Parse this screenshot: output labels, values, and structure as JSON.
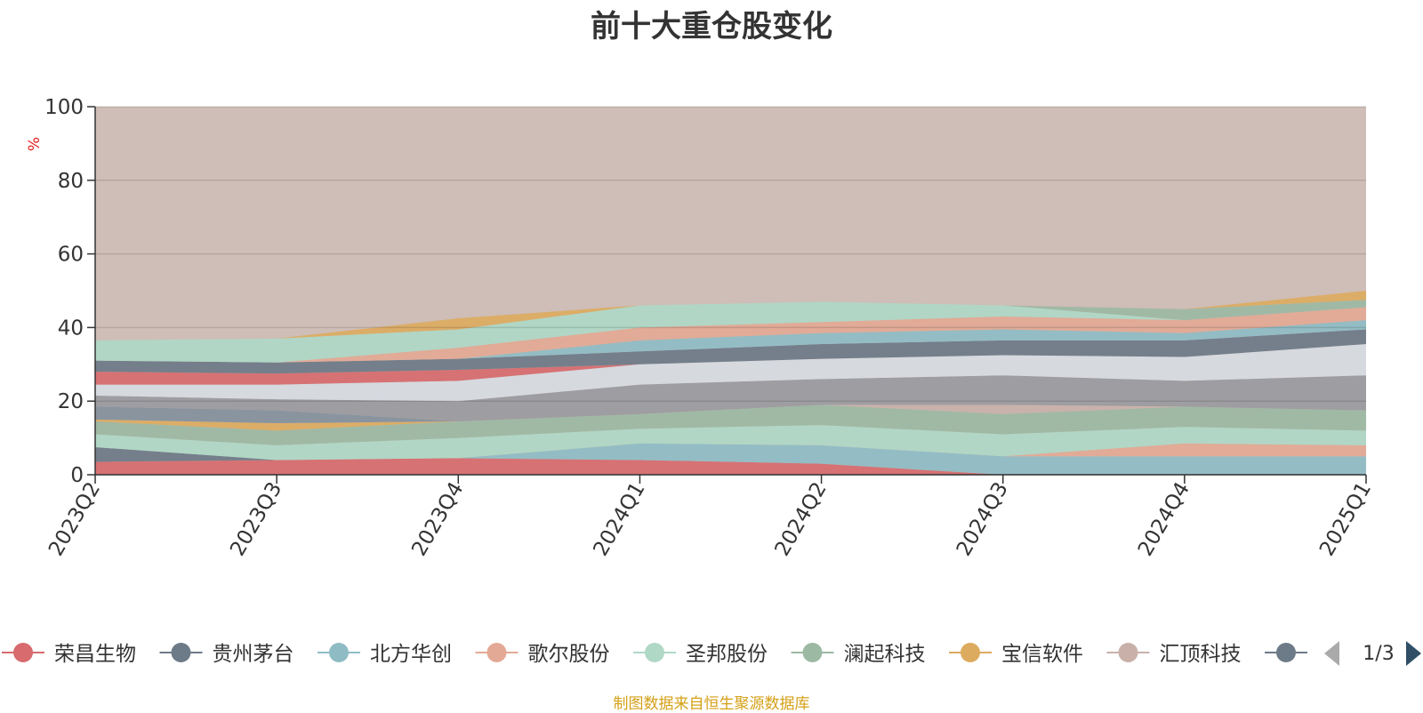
{
  "title": "前十大重仓股变化",
  "footer": "制图数据来自恒生聚源数据库",
  "legend_page": "1/3",
  "colors": {
    "title": "#333333",
    "footer": "#d4a017",
    "axis": "#333333",
    "unit": "#e02020",
    "plot_bg": "#cfbdb7",
    "pager_prev": "#aaaaaa",
    "pager_next": "#2f4f66"
  },
  "chart_data": {
    "type": "area",
    "stacked": true,
    "x": [
      "2023Q2",
      "2023Q3",
      "2023Q4",
      "2024Q1",
      "2024Q2",
      "2024Q3",
      "2024Q4",
      "2025Q1"
    ],
    "ylabel": "%",
    "ylim": [
      0,
      100
    ],
    "yticks": [
      0,
      20,
      40,
      60,
      80,
      100
    ],
    "grid": true,
    "legend_position": "bottom",
    "series": [
      {
        "name": "荣昌生物",
        "color": "#d76b6e",
        "values": [
          3.5,
          4,
          4.5,
          4,
          3,
          0,
          0,
          0
        ]
      },
      {
        "name": "贵州茅台",
        "color": "#6d7a87",
        "values": [
          4,
          0,
          0,
          0,
          0,
          0,
          0,
          0
        ]
      },
      {
        "name": "北方华创",
        "color": "#8fbcc4",
        "values": [
          0,
          0,
          0,
          4.5,
          5,
          5,
          5,
          5
        ]
      },
      {
        "name": "歌尔股份",
        "color": "#e3a994",
        "values": [
          0,
          0,
          0,
          0,
          0,
          0,
          3.5,
          3
        ]
      },
      {
        "name": "圣邦股份",
        "color": "#afd8c6",
        "values": [
          3.5,
          4,
          5.5,
          4,
          5.5,
          6,
          4.5,
          4
        ]
      },
      {
        "name": "澜起科技",
        "color": "#9cb9a3",
        "values": [
          3.5,
          4,
          4.5,
          4,
          5.5,
          5.5,
          5.5,
          5.5
        ]
      },
      {
        "name": "宝信软件",
        "color": "#dcab5f",
        "values": [
          0.5,
          2,
          0,
          0,
          0,
          0,
          0,
          0
        ]
      },
      {
        "name": "汇顶科技",
        "color": "#c9b1a9",
        "values": [
          0,
          0,
          0,
          0,
          0,
          2.5,
          0,
          0
        ]
      },
      {
        "name": "",
        "color": "#83909c",
        "values": [
          3.5,
          3.5,
          0,
          0,
          0,
          0,
          0,
          0
        ]
      },
      {
        "name": "",
        "color": "#9a9a9e",
        "values": [
          3,
          3,
          5.5,
          8,
          7,
          8,
          7,
          9.5
        ]
      },
      {
        "name": "",
        "color": "#d7dbe1",
        "values": [
          3,
          4,
          5.5,
          5.5,
          5.5,
          5.5,
          6.5,
          8.5
        ]
      },
      {
        "name": "",
        "color": "#d76b6e",
        "values": [
          3.5,
          3,
          3,
          0,
          0,
          0,
          0,
          0
        ]
      },
      {
        "name": "",
        "color": "#6d7a87",
        "values": [
          3,
          3,
          3,
          3.5,
          4,
          4,
          4.5,
          4
        ]
      },
      {
        "name": "",
        "color": "#8fbcc4",
        "values": [
          0,
          0,
          0,
          3,
          3,
          3,
          2,
          2.5
        ]
      },
      {
        "name": "",
        "color": "#e3a994",
        "values": [
          0,
          0,
          3,
          3.5,
          3,
          3.5,
          3.5,
          3.5
        ]
      },
      {
        "name": "",
        "color": "#afd8c6",
        "values": [
          5.5,
          6.5,
          5,
          6,
          5.5,
          3,
          0,
          0
        ]
      },
      {
        "name": "",
        "color": "#9cb9a3",
        "values": [
          0,
          0,
          0,
          0,
          0,
          0,
          3,
          2
        ]
      },
      {
        "name": "",
        "color": "#dcab5f",
        "values": [
          0,
          0,
          3,
          0,
          0,
          0,
          0,
          2.5
        ]
      }
    ]
  }
}
